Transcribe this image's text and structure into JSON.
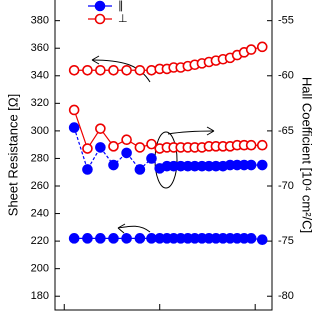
{
  "chart_data": {
    "type": "line",
    "ylabel": "Sheet Resistance [Ω]",
    "y2label": "Hall Coefficient [10⁴ cm²/C]",
    "x": [
      1.27,
      1.75,
      2.39,
      3.28,
      4.5,
      6.2,
      8.2,
      10,
      11.9,
      14,
      16.6,
      19.7,
      23.3,
      27.7,
      32.8,
      38.8,
      46,
      54.6,
      64.7,
      76.6,
      90.8,
      118.6
    ],
    "xlim": [
      0.8,
      150
    ],
    "xticks": [
      1,
      10,
      100
    ],
    "xscale": "log",
    "ylim": [
      170,
      395
    ],
    "yticks": [
      180,
      200,
      220,
      240,
      260,
      280,
      300,
      320,
      340,
      360,
      380
    ],
    "y2lim": [
      -81.25,
      -53.125
    ],
    "y2ticks": [
      -80,
      -75,
      -70,
      -65,
      -60,
      -55
    ],
    "series": [
      {
        "name": "∥",
        "color": "#0000ff",
        "marker": "filled",
        "values": [
          222,
          222,
          222,
          222,
          222,
          222,
          222,
          222,
          222,
          222,
          222,
          222,
          222,
          222,
          222,
          222,
          222,
          222,
          222,
          222,
          222,
          221
        ]
      },
      {
        "name": "⊥",
        "color": "#ee0000",
        "marker": "open",
        "values": [
          344,
          344,
          344,
          344,
          344,
          344,
          344,
          345,
          345,
          346,
          346,
          347,
          348,
          349,
          350,
          351,
          352,
          353,
          355,
          357,
          359,
          361
        ]
      },
      {
        "name": "∥",
        "color": "#0000ff",
        "marker": "filled",
        "axis": "y2",
        "dashed": true,
        "values": [
          -64.7,
          -68.5,
          -66.5,
          -68.1,
          -67.0,
          -68.5,
          -67.5,
          -68.4,
          -68.2,
          -68.2,
          -68.2,
          -68.2,
          -68.2,
          -68.2,
          -68.2,
          -68.2,
          -68.2,
          -68.1,
          -68.1,
          -68.1,
          -68.1,
          -68.1
        ]
      },
      {
        "name": "⊥",
        "color": "#ee0000",
        "marker": "open",
        "axis": "y2",
        "values": [
          -63.1,
          -66.6,
          -64.8,
          -66.4,
          -65.8,
          -66.5,
          -66.2,
          -66.6,
          -66.5,
          -66.5,
          -66.5,
          -66.5,
          -66.5,
          -66.5,
          -66.4,
          -66.4,
          -66.4,
          -66.4,
          -66.3,
          -66.3,
          -66.3,
          -66.3
        ]
      }
    ]
  }
}
